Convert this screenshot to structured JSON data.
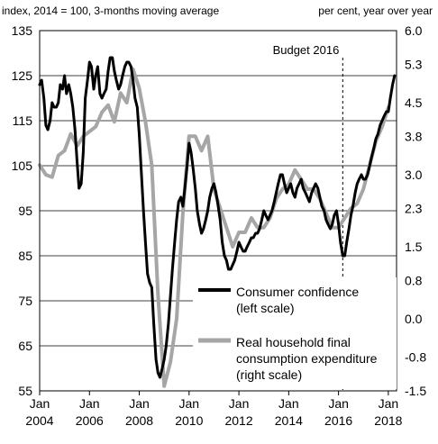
{
  "chart_data": {
    "type": "line",
    "left_axis_title": "index, 2014 = 100, 3-months moving average",
    "right_axis_title": "per cent, year over year",
    "left_ylim": [
      55,
      135
    ],
    "left_ticks": [
      "135",
      "125",
      "115",
      "105",
      "95",
      "85",
      "75",
      "65",
      "55"
    ],
    "right_ylim": [
      -1.5,
      6.0
    ],
    "right_ticks": [
      "6.0",
      "5.3",
      "4.5",
      "3.8",
      "3.0",
      "2.3",
      "1.5",
      "0.8",
      "0.0",
      "-0.8",
      "-1.5"
    ],
    "x_ticks": [
      {
        "month": "Jan",
        "year": "2004",
        "t": 2004.0
      },
      {
        "month": "Jan",
        "year": "2006",
        "t": 2006.0
      },
      {
        "month": "Jan",
        "year": "2008",
        "t": 2008.0
      },
      {
        "month": "Jan",
        "year": "2010",
        "t": 2010.0
      },
      {
        "month": "Jan",
        "year": "2012",
        "t": 2012.0
      },
      {
        "month": "Jan",
        "year": "2014",
        "t": 2014.0
      },
      {
        "month": "Jan",
        "year": "2016",
        "t": 2016.0
      },
      {
        "month": "Jan",
        "year": "2018",
        "t": 2018.0
      }
    ],
    "xlim": [
      2004.0,
      2018.33
    ],
    "gridlines": "horizontal",
    "annotation": {
      "label": "Budget 2016",
      "t": 2016.17
    },
    "series": [
      {
        "name": "Consumer confidence (left scale)",
        "axis": "left",
        "color": "#000000",
        "points": [
          [
            2004.0,
            123
          ],
          [
            2004.08,
            124
          ],
          [
            2004.17,
            120
          ],
          [
            2004.25,
            114
          ],
          [
            2004.33,
            113
          ],
          [
            2004.42,
            115
          ],
          [
            2004.5,
            119
          ],
          [
            2004.58,
            118
          ],
          [
            2004.67,
            118
          ],
          [
            2004.75,
            119
          ],
          [
            2004.83,
            123
          ],
          [
            2004.92,
            122
          ],
          [
            2005.0,
            125
          ],
          [
            2005.08,
            121
          ],
          [
            2005.17,
            123
          ],
          [
            2005.25,
            121
          ],
          [
            2005.33,
            118
          ],
          [
            2005.42,
            113
          ],
          [
            2005.5,
            106
          ],
          [
            2005.58,
            100
          ],
          [
            2005.67,
            101
          ],
          [
            2005.75,
            108
          ],
          [
            2005.83,
            120
          ],
          [
            2005.92,
            124
          ],
          [
            2006.0,
            128
          ],
          [
            2006.08,
            127
          ],
          [
            2006.17,
            122
          ],
          [
            2006.25,
            125
          ],
          [
            2006.33,
            127
          ],
          [
            2006.42,
            121
          ],
          [
            2006.5,
            120
          ],
          [
            2006.58,
            121
          ],
          [
            2006.67,
            122
          ],
          [
            2006.75,
            126
          ],
          [
            2006.83,
            129
          ],
          [
            2006.92,
            129
          ],
          [
            2007.0,
            126
          ],
          [
            2007.08,
            124
          ],
          [
            2007.17,
            122
          ],
          [
            2007.25,
            123
          ],
          [
            2007.33,
            125
          ],
          [
            2007.42,
            127
          ],
          [
            2007.5,
            128
          ],
          [
            2007.58,
            128
          ],
          [
            2007.67,
            127
          ],
          [
            2007.75,
            124
          ],
          [
            2007.83,
            120
          ],
          [
            2007.92,
            118
          ],
          [
            2008.0,
            112
          ],
          [
            2008.08,
            104
          ],
          [
            2008.17,
            95
          ],
          [
            2008.25,
            88
          ],
          [
            2008.33,
            81
          ],
          [
            2008.42,
            79
          ],
          [
            2008.5,
            78
          ],
          [
            2008.58,
            70
          ],
          [
            2008.67,
            62
          ],
          [
            2008.75,
            59
          ],
          [
            2008.83,
            58
          ],
          [
            2008.92,
            60
          ],
          [
            2009.0,
            62
          ],
          [
            2009.08,
            65
          ],
          [
            2009.17,
            70
          ],
          [
            2009.25,
            76
          ],
          [
            2009.33,
            82
          ],
          [
            2009.42,
            88
          ],
          [
            2009.5,
            93
          ],
          [
            2009.58,
            97
          ],
          [
            2009.67,
            98
          ],
          [
            2009.75,
            96
          ],
          [
            2009.83,
            100
          ],
          [
            2009.92,
            105
          ],
          [
            2010.0,
            110
          ],
          [
            2010.08,
            108
          ],
          [
            2010.17,
            104
          ],
          [
            2010.25,
            100
          ],
          [
            2010.33,
            95
          ],
          [
            2010.42,
            92
          ],
          [
            2010.5,
            90
          ],
          [
            2010.58,
            91
          ],
          [
            2010.67,
            93
          ],
          [
            2010.75,
            95
          ],
          [
            2010.83,
            98
          ],
          [
            2010.92,
            100
          ],
          [
            2011.0,
            101
          ],
          [
            2011.08,
            99
          ],
          [
            2011.17,
            96
          ],
          [
            2011.25,
            93
          ],
          [
            2011.33,
            88
          ],
          [
            2011.42,
            85
          ],
          [
            2011.5,
            84
          ],
          [
            2011.58,
            82
          ],
          [
            2011.67,
            82
          ],
          [
            2011.75,
            83
          ],
          [
            2011.83,
            84
          ],
          [
            2011.92,
            86
          ],
          [
            2012.0,
            88
          ],
          [
            2012.08,
            87
          ],
          [
            2012.17,
            86
          ],
          [
            2012.25,
            86
          ],
          [
            2012.33,
            87
          ],
          [
            2012.42,
            88
          ],
          [
            2012.5,
            89
          ],
          [
            2012.58,
            89
          ],
          [
            2012.67,
            90
          ],
          [
            2012.75,
            90
          ],
          [
            2012.83,
            91
          ],
          [
            2012.92,
            93
          ],
          [
            2013.0,
            95
          ],
          [
            2013.08,
            94
          ],
          [
            2013.17,
            93
          ],
          [
            2013.25,
            94
          ],
          [
            2013.33,
            95
          ],
          [
            2013.42,
            97
          ],
          [
            2013.5,
            99
          ],
          [
            2013.58,
            101
          ],
          [
            2013.67,
            103
          ],
          [
            2013.75,
            103
          ],
          [
            2013.83,
            101
          ],
          [
            2013.92,
            99
          ],
          [
            2014.0,
            100
          ],
          [
            2014.08,
            101
          ],
          [
            2014.17,
            99
          ],
          [
            2014.25,
            98
          ],
          [
            2014.33,
            100
          ],
          [
            2014.42,
            101
          ],
          [
            2014.5,
            102
          ],
          [
            2014.58,
            100
          ],
          [
            2014.67,
            99
          ],
          [
            2014.75,
            98
          ],
          [
            2014.83,
            97
          ],
          [
            2014.92,
            99
          ],
          [
            2015.0,
            100
          ],
          [
            2015.08,
            101
          ],
          [
            2015.17,
            100
          ],
          [
            2015.25,
            98
          ],
          [
            2015.33,
            96
          ],
          [
            2015.42,
            95
          ],
          [
            2015.5,
            93
          ],
          [
            2015.58,
            92
          ],
          [
            2015.67,
            91
          ],
          [
            2015.75,
            92
          ],
          [
            2015.83,
            94
          ],
          [
            2015.92,
            95
          ],
          [
            2016.0,
            92
          ],
          [
            2016.08,
            88
          ],
          [
            2016.17,
            85
          ],
          [
            2016.25,
            85
          ],
          [
            2016.33,
            88
          ],
          [
            2016.42,
            91
          ],
          [
            2016.5,
            94
          ],
          [
            2016.58,
            96
          ],
          [
            2016.67,
            99
          ],
          [
            2016.75,
            101
          ],
          [
            2016.83,
            102
          ],
          [
            2016.92,
            103
          ],
          [
            2017.0,
            102
          ],
          [
            2017.08,
            102
          ],
          [
            2017.17,
            103
          ],
          [
            2017.25,
            105
          ],
          [
            2017.33,
            107
          ],
          [
            2017.42,
            109
          ],
          [
            2017.5,
            111
          ],
          [
            2017.58,
            112
          ],
          [
            2017.67,
            114
          ],
          [
            2017.75,
            115
          ],
          [
            2017.83,
            116
          ],
          [
            2017.92,
            117
          ],
          [
            2018.0,
            117
          ],
          [
            2018.08,
            120
          ],
          [
            2018.17,
            123
          ],
          [
            2018.25,
            125
          ]
        ]
      },
      {
        "name": "Real household final consumption expenditure (right scale)",
        "axis": "right",
        "color": "#a6a6a6",
        "points": [
          [
            2004.0,
            3.2
          ],
          [
            2004.25,
            3.0
          ],
          [
            2004.5,
            2.95
          ],
          [
            2004.75,
            3.4
          ],
          [
            2005.0,
            3.5
          ],
          [
            2005.25,
            3.85
          ],
          [
            2005.5,
            3.6
          ],
          [
            2005.75,
            3.8
          ],
          [
            2006.0,
            3.9
          ],
          [
            2006.25,
            4.0
          ],
          [
            2006.5,
            4.3
          ],
          [
            2006.75,
            4.45
          ],
          [
            2007.0,
            4.1
          ],
          [
            2007.25,
            4.7
          ],
          [
            2007.5,
            4.5
          ],
          [
            2007.75,
            5.2
          ],
          [
            2008.0,
            4.8
          ],
          [
            2008.25,
            4.1
          ],
          [
            2008.5,
            3.2
          ],
          [
            2008.75,
            0.5
          ],
          [
            2009.0,
            -1.4
          ],
          [
            2009.25,
            -0.9
          ],
          [
            2009.5,
            0.0
          ],
          [
            2009.75,
            2.2
          ],
          [
            2010.0,
            3.8
          ],
          [
            2010.25,
            3.8
          ],
          [
            2010.5,
            3.5
          ],
          [
            2010.75,
            3.8
          ],
          [
            2011.0,
            2.7
          ],
          [
            2011.25,
            2.3
          ],
          [
            2011.5,
            1.9
          ],
          [
            2011.75,
            1.5
          ],
          [
            2012.0,
            1.8
          ],
          [
            2012.25,
            1.8
          ],
          [
            2012.5,
            2.1
          ],
          [
            2012.75,
            1.9
          ],
          [
            2013.0,
            1.9
          ],
          [
            2013.25,
            2.1
          ],
          [
            2013.5,
            2.5
          ],
          [
            2013.75,
            2.7
          ],
          [
            2014.0,
            2.8
          ],
          [
            2014.25,
            3.1
          ],
          [
            2014.5,
            2.9
          ],
          [
            2014.75,
            2.7
          ],
          [
            2015.0,
            2.7
          ],
          [
            2015.25,
            2.5
          ],
          [
            2015.5,
            2.2
          ],
          [
            2015.75,
            1.9
          ],
          [
            2016.0,
            1.9
          ],
          [
            2016.25,
            2.1
          ],
          [
            2016.5,
            2.3
          ],
          [
            2016.75,
            2.4
          ],
          [
            2017.0,
            2.7
          ],
          [
            2017.25,
            3.2
          ],
          [
            2017.5,
            3.7
          ],
          [
            2017.75,
            4.0
          ],
          [
            2018.0,
            4.4
          ]
        ]
      }
    ]
  }
}
